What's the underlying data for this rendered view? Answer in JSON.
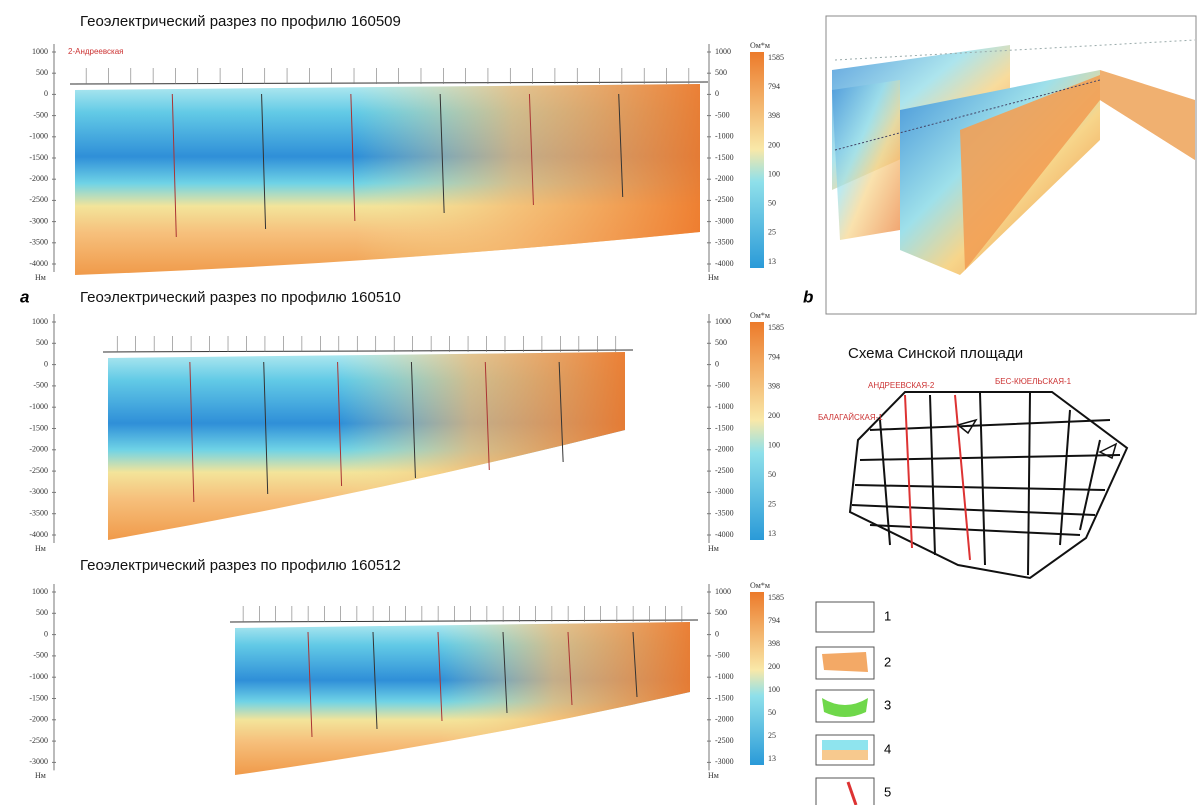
{
  "figure": {
    "panel_a_label": "a",
    "panel_b_label": "b",
    "sections": [
      {
        "title": "Геоэлектрический разрез по профилю 160509",
        "well": "2-Андреевская",
        "depth_ticks": [
          "1000",
          "500",
          "0",
          "-500",
          "-1000",
          "-1500",
          "-2000",
          "-2500",
          "-3000",
          "-3500",
          "-4000"
        ],
        "depth_unit": "Нм"
      },
      {
        "title": "Геоэлектрический разрез по профилю 160510",
        "depth_ticks": [
          "1000",
          "500",
          "0",
          "-500",
          "-1000",
          "-1500",
          "-2000",
          "-2500",
          "-3000",
          "-3500",
          "-4000"
        ],
        "depth_unit": "Нм"
      },
      {
        "title": "Геоэлектрический разрез по профилю 160512",
        "depth_ticks": [
          "1000",
          "500",
          "0",
          "-500",
          "-1000",
          "-1500",
          "-2000",
          "-2500",
          "-3000"
        ],
        "depth_unit": "Нм"
      }
    ],
    "color_scale": {
      "unit": "Ом*м",
      "labels": [
        "1585",
        "794",
        "398",
        "200",
        "100",
        "50",
        "25",
        "13"
      ]
    },
    "scheme": {
      "title": "Схема Синской площади",
      "wells": [
        "АНДРЕЕВСКАЯ-2",
        "БЕС-КЮЕЛЬСКАЯ-1",
        "БАЛАГАЙСКАЯ-1"
      ]
    },
    "legend": [
      "1",
      "2",
      "3",
      "4",
      "5"
    ]
  }
}
